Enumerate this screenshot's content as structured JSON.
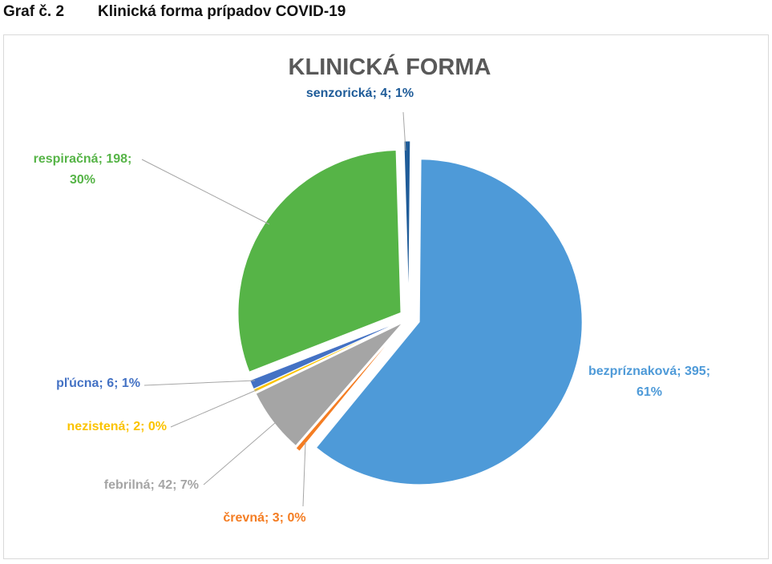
{
  "document": {
    "caption_number": "Graf č. 2",
    "caption_title": "Klinická forma prípadov COVID-19"
  },
  "chart_data": {
    "type": "pie",
    "title": "KLINICKÁ FORMA",
    "slices": [
      {
        "name": "bezpríznaková",
        "value": 395,
        "percent": "61%",
        "color": "#4e9ad8",
        "label_lines": [
          "bezpríznaková; 395;",
          "61%"
        ],
        "label_align": "middle"
      },
      {
        "name": "črevná",
        "value": 3,
        "percent": "0%",
        "color": "#f47d23",
        "label_lines": [
          "črevná; 3; 0%"
        ],
        "label_align": "middle"
      },
      {
        "name": "febrilná",
        "value": 42,
        "percent": "7%",
        "color": "#a5a5a5",
        "label_lines": [
          "febrilná; 42; 7%"
        ],
        "label_align": "end"
      },
      {
        "name": "nezistená",
        "value": 2,
        "percent": "0%",
        "color": "#fbc300",
        "label_lines": [
          "nezistená; 2; 0%"
        ],
        "label_align": "end"
      },
      {
        "name": "pľúcna",
        "value": 6,
        "percent": "1%",
        "color": "#4472c4",
        "label_lines": [
          "pľúcna; 6; 1%"
        ],
        "label_align": "end"
      },
      {
        "name": "respiračná",
        "value": 198,
        "percent": "30%",
        "color": "#56b447",
        "label_lines": [
          "respiračná; 198;",
          "30%"
        ],
        "label_align": "middle"
      },
      {
        "name": "senzorická",
        "value": 4,
        "percent": "1%",
        "color": "#1f5c99",
        "label_lines": [
          "senzorická; 4; 1%"
        ],
        "label_align": "middle"
      }
    ],
    "legend": "none",
    "exploded": true
  }
}
